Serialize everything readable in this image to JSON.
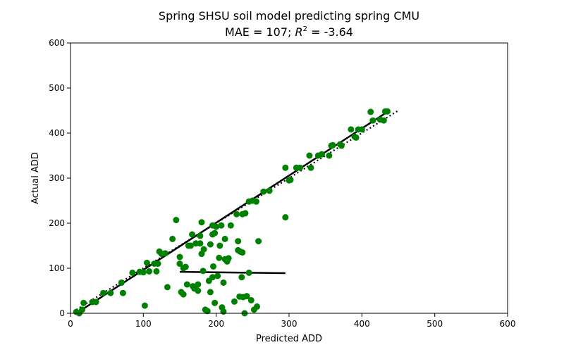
{
  "chart_data": {
    "type": "scatter",
    "title_line1": "Spring SHSU soil model predicting spring CMU",
    "title_line2": {
      "prefix": "MAE = 107; ",
      "r2_base": "R",
      "r2_exp": "2",
      "suffix": " = -3.64"
    },
    "xlabel": "Predicted ADD",
    "ylabel": "Actual ADD",
    "xlim": [
      0,
      600
    ],
    "ylim": [
      0,
      600
    ],
    "xticks": [
      "0",
      "100",
      "200",
      "300",
      "400",
      "500",
      "600"
    ],
    "yticks": [
      "0",
      "100",
      "200",
      "300",
      "400",
      "500",
      "600"
    ],
    "grid": false,
    "legend": "none",
    "point_color": "#008000",
    "line_color": "#000000",
    "points": [
      [
        8,
        3
      ],
      [
        12,
        0
      ],
      [
        16,
        8
      ],
      [
        18,
        23
      ],
      [
        30,
        25
      ],
      [
        35,
        25
      ],
      [
        45,
        45
      ],
      [
        55,
        45
      ],
      [
        70,
        68
      ],
      [
        72,
        45
      ],
      [
        85,
        90
      ],
      [
        95,
        92
      ],
      [
        100,
        91
      ],
      [
        102,
        17
      ],
      [
        105,
        112
      ],
      [
        108,
        93
      ],
      [
        115,
        110
      ],
      [
        118,
        93
      ],
      [
        120,
        110
      ],
      [
        122,
        137
      ],
      [
        125,
        132
      ],
      [
        130,
        133
      ],
      [
        133,
        58
      ],
      [
        140,
        165
      ],
      [
        145,
        207
      ],
      [
        150,
        110
      ],
      [
        150,
        125
      ],
      [
        152,
        47
      ],
      [
        155,
        100
      ],
      [
        155,
        42
      ],
      [
        158,
        103
      ],
      [
        160,
        64
      ],
      [
        162,
        150
      ],
      [
        165,
        150
      ],
      [
        167,
        175
      ],
      [
        168,
        60
      ],
      [
        170,
        55
      ],
      [
        172,
        155
      ],
      [
        175,
        50
      ],
      [
        175,
        64
      ],
      [
        178,
        172
      ],
      [
        178,
        155
      ],
      [
        180,
        132
      ],
      [
        180,
        202
      ],
      [
        182,
        94
      ],
      [
        183,
        142
      ],
      [
        185,
        8
      ],
      [
        188,
        5
      ],
      [
        190,
        72
      ],
      [
        192,
        153
      ],
      [
        192,
        47
      ],
      [
        195,
        195
      ],
      [
        195,
        175
      ],
      [
        195,
        80
      ],
      [
        196,
        104
      ],
      [
        198,
        178
      ],
      [
        198,
        23
      ],
      [
        200,
        192
      ],
      [
        202,
        83
      ],
      [
        204,
        123
      ],
      [
        205,
        150
      ],
      [
        207,
        195
      ],
      [
        208,
        13
      ],
      [
        210,
        4
      ],
      [
        210,
        68
      ],
      [
        212,
        165
      ],
      [
        212,
        120
      ],
      [
        215,
        115
      ],
      [
        217,
        122
      ],
      [
        220,
        195
      ],
      [
        225,
        26
      ],
      [
        228,
        220
      ],
      [
        230,
        160
      ],
      [
        230,
        140
      ],
      [
        232,
        37
      ],
      [
        233,
        137
      ],
      [
        235,
        80
      ],
      [
        236,
        135
      ],
      [
        236,
        220
      ],
      [
        237,
        36
      ],
      [
        239,
        0
      ],
      [
        240,
        222
      ],
      [
        242,
        38
      ],
      [
        245,
        90
      ],
      [
        245,
        248
      ],
      [
        248,
        29
      ],
      [
        250,
        250
      ],
      [
        250,
        250
      ],
      [
        252,
        8
      ],
      [
        255,
        248
      ],
      [
        256,
        15
      ],
      [
        258,
        160
      ],
      [
        265,
        270
      ],
      [
        273,
        272
      ],
      [
        295,
        323
      ],
      [
        295,
        213
      ],
      [
        300,
        295
      ],
      [
        302,
        296
      ],
      [
        310,
        323
      ],
      [
        315,
        323
      ],
      [
        328,
        350
      ],
      [
        330,
        323
      ],
      [
        340,
        350
      ],
      [
        345,
        353
      ],
      [
        355,
        350
      ],
      [
        358,
        372
      ],
      [
        360,
        373
      ],
      [
        370,
        375
      ],
      [
        372,
        372
      ],
      [
        385,
        408
      ],
      [
        390,
        392
      ],
      [
        392,
        390
      ],
      [
        395,
        408
      ],
      [
        400,
        408
      ],
      [
        412,
        447
      ],
      [
        415,
        428
      ],
      [
        425,
        430
      ],
      [
        430,
        428
      ],
      [
        432,
        448
      ],
      [
        435,
        448
      ]
    ],
    "lines": [
      {
        "name": "",
        "style": "solid",
        "x": [
          8,
          435
        ],
        "y": [
          0,
          447
        ]
      },
      {
        "name": "",
        "style": "dotted",
        "x": [
          8,
          450
        ],
        "y": [
          8,
          450
        ]
      },
      {
        "name": "",
        "style": "solid",
        "x": [
          150,
          295
        ],
        "y": [
          92,
          89
        ]
      }
    ]
  }
}
